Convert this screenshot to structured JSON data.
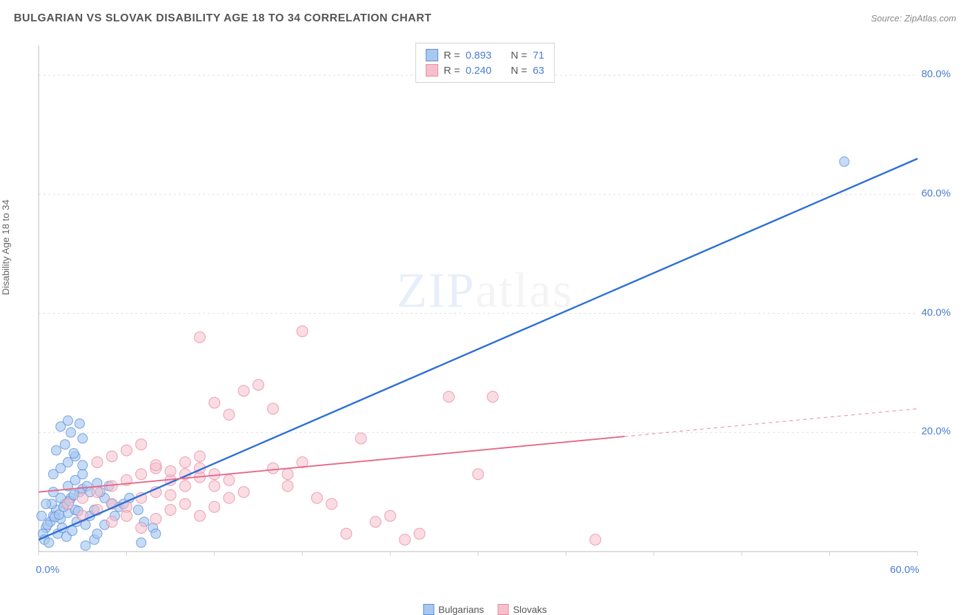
{
  "header": {
    "title": "BULGARIAN VS SLOVAK DISABILITY AGE 18 TO 34 CORRELATION CHART",
    "source": "Source: ZipAtlas.com"
  },
  "chart": {
    "type": "scatter",
    "y_axis_label": "Disability Age 18 to 34",
    "plot_bg": "#ffffff",
    "grid_color": "#dddddd",
    "axis_color": "#bbbbbb",
    "tick_color": "#cccccc",
    "label_color": "#4a7bd0",
    "xlim": [
      0,
      60
    ],
    "ylim": [
      0,
      85
    ],
    "x_ticks": [
      0,
      6,
      12,
      18,
      24,
      30,
      36,
      42,
      48,
      54,
      60
    ],
    "x_tick_labels": {
      "0": "0.0%",
      "60": "60.0%"
    },
    "y_ticks": [
      20,
      40,
      60,
      80
    ],
    "y_tick_labels": {
      "20": "20.0%",
      "40": "40.0%",
      "60": "60.0%",
      "80": "80.0%"
    },
    "watermark": {
      "zip": "ZIP",
      "atlas": "atlas"
    },
    "series": [
      {
        "name": "Bulgarians",
        "fill": "#a8c8f0",
        "stroke": "#5b8fd8",
        "line_color": "#2e6fd8",
        "line_width": 2.5,
        "marker_r": 7,
        "marker_opacity": 0.65,
        "R": "0.893",
        "N": "71",
        "trend": {
          "x1": 0,
          "y1": 2,
          "x2": 60,
          "y2": 66,
          "solid_to_x": 60
        },
        "points": [
          [
            0.5,
            4
          ],
          [
            0.8,
            5
          ],
          [
            1,
            6
          ],
          [
            1.2,
            7
          ],
          [
            1.5,
            5.5
          ],
          [
            1.8,
            8
          ],
          [
            2,
            6.5
          ],
          [
            2.2,
            9
          ],
          [
            2.5,
            7
          ],
          [
            2.8,
            10
          ],
          [
            0.3,
            3
          ],
          [
            0.6,
            4.5
          ],
          [
            1.1,
            5.8
          ],
          [
            1.4,
            6.2
          ],
          [
            1.7,
            7.5
          ],
          [
            2.1,
            8.5
          ],
          [
            2.4,
            9.5
          ],
          [
            2.7,
            6.8
          ],
          [
            3,
            10.5
          ],
          [
            3.3,
            11
          ],
          [
            0.4,
            2
          ],
          [
            0.7,
            1.5
          ],
          [
            1.3,
            3
          ],
          [
            1.6,
            4
          ],
          [
            1.9,
            2.5
          ],
          [
            2.3,
            3.5
          ],
          [
            2.6,
            5
          ],
          [
            3.2,
            4.5
          ],
          [
            3.5,
            6
          ],
          [
            3.8,
            7
          ],
          [
            0.9,
            8
          ],
          [
            1.5,
            9
          ],
          [
            2,
            11
          ],
          [
            2.5,
            12
          ],
          [
            3,
            13
          ],
          [
            3.5,
            10
          ],
          [
            4,
            11.5
          ],
          [
            4.5,
            9
          ],
          [
            5,
            8
          ],
          [
            5.5,
            7.5
          ],
          [
            1,
            13
          ],
          [
            1.5,
            14
          ],
          [
            2,
            15
          ],
          [
            2.5,
            16
          ],
          [
            3,
            14.5
          ],
          [
            1.2,
            17
          ],
          [
            1.8,
            18
          ],
          [
            2.4,
            16.5
          ],
          [
            3.2,
            1
          ],
          [
            3.8,
            2
          ],
          [
            4.2,
            10
          ],
          [
            4.8,
            11
          ],
          [
            5.2,
            6
          ],
          [
            5.8,
            8
          ],
          [
            6.2,
            9
          ],
          [
            6.8,
            7
          ],
          [
            7.2,
            5
          ],
          [
            7.8,
            4
          ],
          [
            4,
            3
          ],
          [
            4.5,
            4.5
          ],
          [
            1.5,
            21
          ],
          [
            2,
            22
          ],
          [
            2.2,
            20
          ],
          [
            2.8,
            21.5
          ],
          [
            3,
            19
          ],
          [
            7,
            1.5
          ],
          [
            8,
            3
          ],
          [
            0.2,
            6
          ],
          [
            0.5,
            8
          ],
          [
            1,
            10
          ],
          [
            55,
            65.5
          ]
        ]
      },
      {
        "name": "Slovaks",
        "fill": "#f5c0cc",
        "stroke": "#e88aa0",
        "line_color": "#e56b8a",
        "line_width": 2,
        "marker_r": 8,
        "marker_opacity": 0.55,
        "R": "0.240",
        "N": "63",
        "trend": {
          "x1": 0,
          "y1": 10,
          "x2": 60,
          "y2": 24,
          "solid_to_x": 40
        },
        "points": [
          [
            2,
            8
          ],
          [
            3,
            9
          ],
          [
            4,
            10
          ],
          [
            5,
            11
          ],
          [
            6,
            12
          ],
          [
            7,
            13
          ],
          [
            8,
            14
          ],
          [
            9,
            9.5
          ],
          [
            10,
            11
          ],
          [
            11,
            12.5
          ],
          [
            3,
            6
          ],
          [
            4,
            7
          ],
          [
            5,
            8
          ],
          [
            6,
            7.5
          ],
          [
            7,
            9
          ],
          [
            8,
            10
          ],
          [
            9,
            12
          ],
          [
            10,
            13
          ],
          [
            11,
            14
          ],
          [
            12,
            11
          ],
          [
            4,
            15
          ],
          [
            5,
            16
          ],
          [
            6,
            17
          ],
          [
            7,
            18
          ],
          [
            8,
            14.5
          ],
          [
            9,
            13.5
          ],
          [
            10,
            15
          ],
          [
            11,
            16
          ],
          [
            12,
            13
          ],
          [
            13,
            12
          ],
          [
            5,
            5
          ],
          [
            6,
            6
          ],
          [
            7,
            4
          ],
          [
            8,
            5.5
          ],
          [
            9,
            7
          ],
          [
            10,
            8
          ],
          [
            11,
            6
          ],
          [
            12,
            7.5
          ],
          [
            13,
            9
          ],
          [
            14,
            10
          ],
          [
            12,
            25
          ],
          [
            14,
            27
          ],
          [
            15,
            28
          ],
          [
            13,
            23
          ],
          [
            16,
            24
          ],
          [
            17,
            13
          ],
          [
            18,
            15
          ],
          [
            19,
            9
          ],
          [
            20,
            8
          ],
          [
            21,
            3
          ],
          [
            11,
            36
          ],
          [
            18,
            37
          ],
          [
            22,
            19
          ],
          [
            25,
            2
          ],
          [
            26,
            3
          ],
          [
            28,
            26
          ],
          [
            31,
            26
          ],
          [
            23,
            5
          ],
          [
            24,
            6
          ],
          [
            30,
            13
          ],
          [
            38,
            2
          ],
          [
            16,
            14
          ],
          [
            17,
            11
          ]
        ]
      }
    ],
    "bottom_legend": [
      {
        "label": "Bulgarians",
        "fill": "#a8c8f0",
        "stroke": "#5b8fd8"
      },
      {
        "label": "Slovaks",
        "fill": "#f5c0cc",
        "stroke": "#e88aa0"
      }
    ]
  }
}
